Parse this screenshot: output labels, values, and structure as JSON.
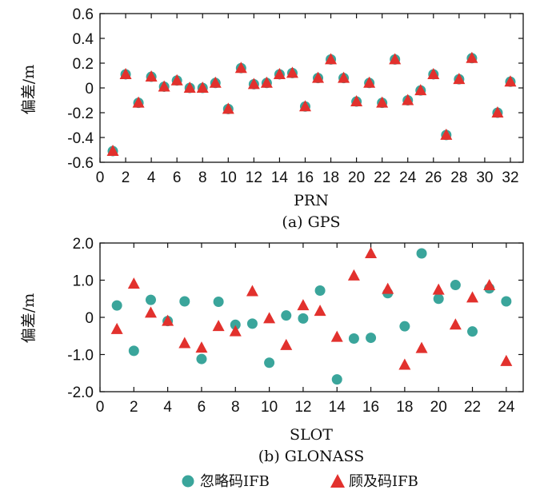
{
  "legend": {
    "circle_label": "忽略码IFB",
    "triangle_label": "顾及码IFB"
  },
  "colors": {
    "circle": "#3aa59b",
    "triangle": "#e2312d"
  },
  "chart_data": [
    {
      "type": "scatter",
      "id": "gps",
      "title": "(a) GPS",
      "xlabel": "PRN",
      "ylabel": "偏差/m",
      "xlim": [
        0,
        33
      ],
      "ylim": [
        -0.6,
        0.6
      ],
      "xticks": [
        0,
        2,
        4,
        6,
        8,
        10,
        12,
        14,
        16,
        18,
        20,
        22,
        24,
        26,
        28,
        30,
        32
      ],
      "yticks": [
        -0.6,
        -0.4,
        -0.2,
        0,
        0.2,
        0.4,
        0.6
      ],
      "ytick_labels": [
        "-0.6",
        "-0.4",
        "-0.2",
        "0",
        "0.2",
        "0.4",
        "0.6"
      ],
      "series": [
        {
          "name": "忽略码IFB",
          "marker": "circle",
          "x": [
            1,
            2,
            3,
            4,
            5,
            6,
            7,
            8,
            9,
            10,
            11,
            12,
            13,
            14,
            15,
            16,
            17,
            18,
            19,
            20,
            21,
            22,
            23,
            24,
            25,
            26,
            27,
            28,
            29,
            31,
            32
          ],
          "y": [
            -0.51,
            0.11,
            -0.12,
            0.09,
            0.01,
            0.06,
            0.0,
            0.0,
            0.04,
            -0.17,
            0.16,
            0.03,
            0.04,
            0.11,
            0.12,
            -0.15,
            0.08,
            0.23,
            0.08,
            -0.11,
            0.04,
            -0.12,
            0.23,
            -0.1,
            -0.02,
            0.11,
            -0.38,
            0.07,
            0.24,
            -0.2,
            0.05
          ]
        },
        {
          "name": "顾及码IFB",
          "marker": "triangle",
          "x": [
            1,
            2,
            3,
            4,
            5,
            6,
            7,
            8,
            9,
            10,
            11,
            12,
            13,
            14,
            15,
            16,
            17,
            18,
            19,
            20,
            21,
            22,
            23,
            24,
            25,
            26,
            27,
            28,
            29,
            31,
            32
          ],
          "y": [
            -0.51,
            0.11,
            -0.12,
            0.09,
            0.01,
            0.06,
            0.0,
            0.0,
            0.04,
            -0.17,
            0.16,
            0.03,
            0.04,
            0.11,
            0.12,
            -0.15,
            0.08,
            0.23,
            0.08,
            -0.11,
            0.04,
            -0.12,
            0.23,
            -0.1,
            -0.02,
            0.11,
            -0.38,
            0.07,
            0.24,
            -0.2,
            0.05
          ]
        }
      ]
    },
    {
      "type": "scatter",
      "id": "glonass",
      "title": "(b) GLONASS",
      "xlabel": "SLOT",
      "ylabel": "偏差/m",
      "xlim": [
        0,
        25
      ],
      "ylim": [
        -2.0,
        2.0
      ],
      "xticks": [
        0,
        2,
        4,
        6,
        8,
        10,
        12,
        14,
        16,
        18,
        20,
        22,
        24
      ],
      "yticks": [
        -2.0,
        -1.0,
        0,
        1.0,
        2.0
      ],
      "ytick_labels": [
        "-2.0",
        "-1.0",
        "0",
        "1.0",
        "2.0"
      ],
      "series": [
        {
          "name": "忽略码IFB",
          "marker": "circle",
          "x": [
            1,
            2,
            3,
            4,
            5,
            6,
            7,
            8,
            9,
            10,
            11,
            12,
            13,
            14,
            15,
            16,
            17,
            18,
            19,
            20,
            21,
            22,
            23,
            24
          ],
          "y": [
            0.32,
            -0.9,
            0.47,
            -0.1,
            0.43,
            -1.12,
            0.42,
            -0.2,
            -0.17,
            -1.22,
            0.05,
            -0.03,
            0.72,
            -1.67,
            -0.57,
            -0.55,
            0.65,
            -0.24,
            1.72,
            0.5,
            0.87,
            -0.38,
            0.78,
            0.43
          ]
        },
        {
          "name": "顾及码IFB",
          "marker": "triangle",
          "x": [
            1,
            2,
            3,
            4,
            5,
            6,
            7,
            8,
            9,
            10,
            11,
            12,
            13,
            14,
            15,
            16,
            17,
            18,
            19,
            20,
            21,
            22,
            23,
            24
          ],
          "y": [
            -0.32,
            0.9,
            0.12,
            -0.1,
            -0.7,
            -0.82,
            -0.24,
            -0.38,
            0.7,
            -0.03,
            -0.75,
            0.32,
            0.17,
            -0.53,
            1.12,
            1.72,
            0.76,
            -1.28,
            -0.83,
            0.74,
            -0.2,
            0.53,
            0.86,
            -1.18
          ]
        }
      ]
    }
  ]
}
